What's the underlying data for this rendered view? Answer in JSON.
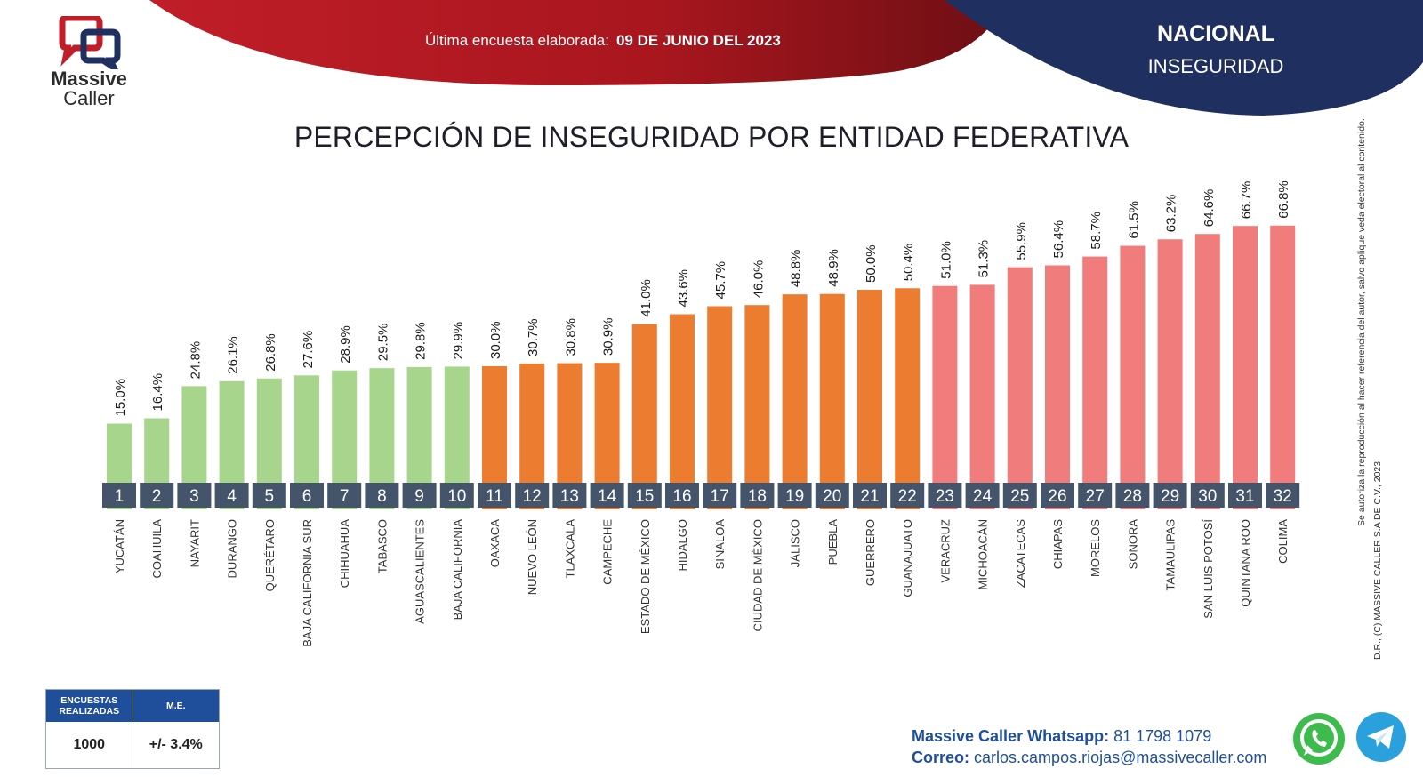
{
  "brand": {
    "name_line1": "Massive",
    "name_line2": "Caller"
  },
  "header": {
    "survey_label": "Última encuesta elaborada:",
    "survey_date": "09 DE JUNIO DEL 2023",
    "scope": "NACIONAL",
    "topic": "INSEGURIDAD"
  },
  "colors": {
    "green": "#a8d58c",
    "orange": "#ec7c30",
    "salmon": "#f07c7c",
    "navy": "#1f3060",
    "red": "#b11c24",
    "number_box": "#44546a"
  },
  "chart_data": {
    "type": "bar",
    "title": "PERCEPCIÓN DE INSEGURIDAD POR ENTIDAD FEDERATIVA",
    "ylim": [
      0,
      80
    ],
    "ranks": [
      "1",
      "2",
      "3",
      "4",
      "5",
      "6",
      "7",
      "8",
      "9",
      "10",
      "11",
      "12",
      "13",
      "14",
      "15",
      "16",
      "17",
      "18",
      "19",
      "20",
      "21",
      "22",
      "23",
      "24",
      "25",
      "26",
      "27",
      "28",
      "29",
      "30",
      "31",
      "32"
    ],
    "categories": [
      "YUCATÁN",
      "COAHUILA",
      "NAYARIT",
      "DURANGO",
      "QUERÉTARO",
      "BAJA CALIFORNIA SUR",
      "CHIHUAHUA",
      "TABASCO",
      "AGUASCALIENTES",
      "BAJA CALIFORNIA",
      "OAXACA",
      "NUEVO LEÓN",
      "TLAXCALA",
      "CAMPECHE",
      "ESTADO DE MÉXICO",
      "HIDALGO",
      "SINALOA",
      "CIUDAD DE MÉXICO",
      "JALISCO",
      "PUEBLA",
      "GUERRERO",
      "GUANAJUATO",
      "VERACRUZ",
      "MICHOACÁN",
      "ZACATECAS",
      "CHIAPAS",
      "MORELOS",
      "SONORA",
      "TAMAULIPAS",
      "SAN LUIS POTOSÍ",
      "QUINTANA ROO",
      "COLIMA"
    ],
    "values": [
      15.0,
      16.4,
      24.8,
      26.1,
      26.8,
      27.6,
      28.9,
      29.5,
      29.8,
      29.9,
      30.0,
      30.7,
      30.8,
      30.9,
      41.0,
      43.6,
      45.7,
      46.0,
      48.8,
      48.9,
      50.0,
      50.4,
      51.0,
      51.3,
      55.9,
      56.4,
      58.7,
      61.5,
      63.2,
      64.6,
      66.7,
      66.8
    ],
    "value_labels": [
      "15.0%",
      "16.4%",
      "24.8%",
      "26.1%",
      "26.8%",
      "27.6%",
      "28.9%",
      "29.5%",
      "29.8%",
      "29.9%",
      "30.0%",
      "30.7%",
      "30.8%",
      "30.9%",
      "41.0%",
      "43.6%",
      "45.7%",
      "46.0%",
      "48.8%",
      "48.9%",
      "50.0%",
      "50.4%",
      "51.0%",
      "51.3%",
      "55.9%",
      "56.4%",
      "58.7%",
      "61.5%",
      "63.2%",
      "64.6%",
      "66.7%",
      "66.8%"
    ],
    "bar_colors": [
      "#a8d58c",
      "#a8d58c",
      "#a8d58c",
      "#a8d58c",
      "#a8d58c",
      "#a8d58c",
      "#a8d58c",
      "#a8d58c",
      "#a8d58c",
      "#a8d58c",
      "#ec7c30",
      "#ec7c30",
      "#ec7c30",
      "#ec7c30",
      "#ec7c30",
      "#ec7c30",
      "#ec7c30",
      "#ec7c30",
      "#ec7c30",
      "#ec7c30",
      "#ec7c30",
      "#ec7c30",
      "#f07c7c",
      "#f07c7c",
      "#f07c7c",
      "#f07c7c",
      "#f07c7c",
      "#f07c7c",
      "#f07c7c",
      "#f07c7c",
      "#f07c7c",
      "#f07c7c"
    ],
    "grid": false,
    "legend": "none"
  },
  "legal": {
    "line1": "D.R., (C) MASSIVE CALLER S.A DE C.V., 2023",
    "line2": "Se autoriza la reproducción al hacer referencia del autor, salvo aplique veda electoral al contenido."
  },
  "survey_table": {
    "col1_header": "ENCUESTAS REALIZADAS",
    "col2_header": "M.E.",
    "col1_value": "1000",
    "col2_value": "+/- 3.4%"
  },
  "contact": {
    "whatsapp_label": "Massive Caller Whatsapp:",
    "whatsapp_number": "81 1798 1079",
    "email_label": "Correo:",
    "email": "carlos.campos.riojas@massivecaller.com"
  },
  "icons": {
    "whatsapp": "whatsapp-icon",
    "telegram": "telegram-icon",
    "logo": "chat-bubbles-logo-icon"
  }
}
